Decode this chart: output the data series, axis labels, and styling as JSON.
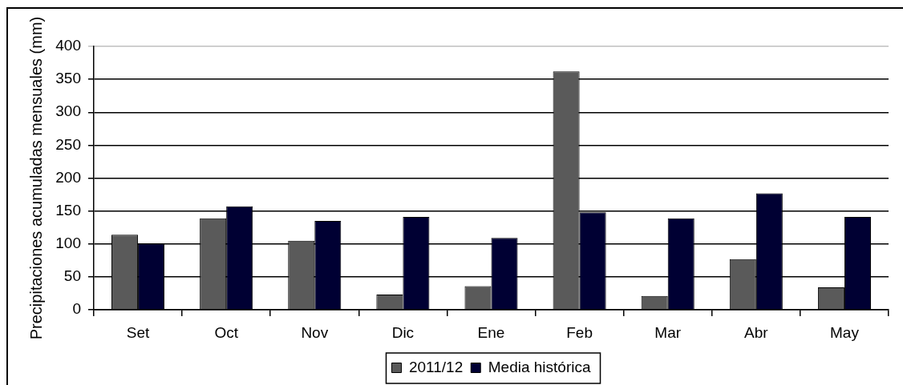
{
  "chart_data": {
    "type": "bar",
    "ylabel": "Precipitaciones acumuladas mensuales (mm)",
    "categories": [
      "Set",
      "Oct",
      "Nov",
      "Dic",
      "Ene",
      "Feb",
      "Mar",
      "Abr",
      "May"
    ],
    "series": [
      {
        "name": "2011/12",
        "color": "#5a5a5a",
        "values": [
          114,
          139,
          105,
          23,
          36,
          362,
          21,
          77,
          34
        ]
      },
      {
        "name": "Media histórica",
        "color": "#000033",
        "values": [
          101,
          157,
          135,
          141,
          109,
          148,
          139,
          177,
          141
        ]
      }
    ],
    "ylim": [
      0,
      400
    ],
    "yticks": [
      0,
      50,
      100,
      150,
      200,
      250,
      300,
      350,
      400
    ],
    "grid": "y",
    "legend": "bottom"
  }
}
